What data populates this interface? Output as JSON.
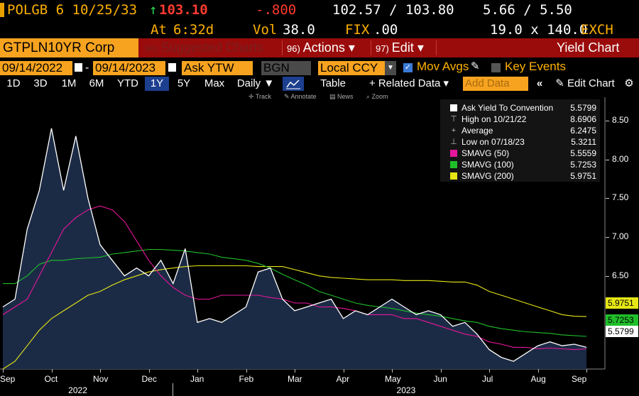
{
  "quote": {
    "security": "POLGB 6 10/25/33",
    "arrow": "↑",
    "price": "103.10",
    "change": "-.800",
    "bid_ask": "102.57 / 103.80",
    "yields": "5.66 / 5.50",
    "at_label": "At",
    "time": "6:32d",
    "vol_label": "Vol",
    "volume": "38.0",
    "fix_label": "FIX",
    "fix": ".00",
    "size": "19.0 x 140.0",
    "exchange": "EXCH"
  },
  "menubar": {
    "ticker": "GTPLN10YR Corp",
    "suggested_num": "96)",
    "suggested": "Suggested Charts",
    "actions_num": "96)",
    "actions": "Actions ▾",
    "edit_num": "97)",
    "edit": "Edit ▾",
    "title": "Yield Chart"
  },
  "controls": {
    "start_date": "09/14/2022",
    "dash": "-",
    "end_date": "09/14/2023",
    "field": "Ask YTW",
    "source": "BGN",
    "currency": "Local CCY",
    "mov_avgs": "Mov Avgs",
    "key_events": "Key Events"
  },
  "toolbar": {
    "ranges": [
      "1D",
      "3D",
      "1M",
      "6M",
      "YTD",
      "1Y",
      "5Y",
      "Max"
    ],
    "selected_range": "1Y",
    "frequency": "Daily ▼",
    "table": "Table",
    "related": "+ Related Data ▾",
    "add_data_placeholder": "Add Data",
    "edit_chart": "Edit Chart",
    "mini_track": "Track",
    "mini_annotate": "Annotate",
    "mini_news": "News",
    "mini_zoom": "Zoom"
  },
  "colors": {
    "price_line": "#ffffff",
    "area_fill": "#1c2b45",
    "smavg50": "#e6169b",
    "smavg100": "#1fbf2a",
    "smavg200": "#e6e616",
    "menubar": "#9a0b0b",
    "orange": "#f7a31f"
  },
  "legend": [
    {
      "label": "Ask Yield To Convention",
      "value": "5.5799",
      "kind": "swatch",
      "color": "#ffffff"
    },
    {
      "label": "High on 10/21/22",
      "value": "8.6906",
      "kind": "glyph",
      "glyph": "⊤"
    },
    {
      "label": "Average",
      "value": "6.2475",
      "kind": "glyph",
      "glyph": "+"
    },
    {
      "label": "Low on 07/18/23",
      "value": "5.3211",
      "kind": "glyph",
      "glyph": "⊥"
    },
    {
      "label": "SMAVG (50)",
      "value": "5.5559",
      "kind": "swatch",
      "color": "#e6169b"
    },
    {
      "label": "SMAVG (100)",
      "value": "5.7253",
      "kind": "swatch",
      "color": "#1fbf2a"
    },
    {
      "label": "SMAVG (200)",
      "value": "5.9751",
      "kind": "swatch",
      "color": "#e6e616"
    }
  ],
  "chart_data": {
    "type": "area",
    "ylim": [
      5.3,
      8.8
    ],
    "y_ticks": [
      "8.50",
      "8.00",
      "7.50",
      "7.00",
      "6.50"
    ],
    "x_tick_labels": [
      "Sep",
      "Oct",
      "Nov",
      "Dec",
      "Jan",
      "Feb",
      "Mar",
      "Apr",
      "May",
      "Jun",
      "Jul",
      "Aug",
      "Sep"
    ],
    "year_labels": [
      "2022",
      "2023"
    ],
    "x": [
      0,
      0.25,
      0.5,
      0.75,
      1,
      1.25,
      1.5,
      1.75,
      2,
      2.25,
      2.5,
      2.75,
      3,
      3.25,
      3.5,
      3.75,
      4,
      4.25,
      4.5,
      4.75,
      5,
      5.25,
      5.5,
      5.75,
      6,
      6.25,
      6.5,
      6.75,
      7,
      7.25,
      7.5,
      7.75,
      8,
      8.25,
      8.5,
      8.75,
      9,
      9.25,
      9.5,
      9.75,
      10,
      10.25,
      10.5,
      10.75,
      11,
      11.25,
      11.5,
      11.75,
      12
    ],
    "series": [
      {
        "name": "Ask Yield To Convention",
        "values": [
          6.1,
          6.2,
          7.1,
          7.6,
          8.4,
          7.6,
          8.3,
          7.5,
          6.9,
          6.7,
          6.5,
          6.6,
          6.5,
          6.7,
          6.4,
          6.85,
          5.9,
          5.95,
          5.9,
          6.0,
          6.1,
          6.55,
          6.6,
          6.2,
          6.05,
          6.1,
          6.15,
          6.2,
          5.95,
          6.05,
          6.0,
          6.1,
          6.2,
          6.1,
          6.0,
          6.05,
          6.0,
          5.85,
          5.9,
          5.75,
          5.55,
          5.45,
          5.4,
          5.5,
          5.6,
          5.65,
          5.6,
          5.62,
          5.58
        ]
      },
      {
        "name": "SMAVG (50)",
        "values": [
          6.0,
          6.1,
          6.2,
          6.5,
          6.8,
          7.1,
          7.25,
          7.35,
          7.4,
          7.35,
          7.2,
          6.95,
          6.7,
          6.5,
          6.35,
          6.25,
          6.2,
          6.2,
          6.25,
          6.25,
          6.25,
          6.25,
          6.22,
          6.2,
          6.15,
          6.15,
          6.1,
          6.1,
          6.08,
          6.05,
          6.0,
          6.0,
          6.0,
          5.95,
          5.95,
          5.9,
          5.85,
          5.8,
          5.75,
          5.72,
          5.65,
          5.62,
          5.58,
          5.58,
          5.56,
          5.57,
          5.56,
          5.55,
          5.56
        ]
      },
      {
        "name": "SMAVG (100)",
        "values": [
          6.4,
          6.4,
          6.5,
          6.65,
          6.7,
          6.7,
          6.72,
          6.73,
          6.74,
          6.78,
          6.8,
          6.82,
          6.84,
          6.84,
          6.83,
          6.82,
          6.8,
          6.78,
          6.74,
          6.72,
          6.7,
          6.66,
          6.6,
          6.52,
          6.45,
          6.38,
          6.3,
          6.25,
          6.2,
          6.15,
          6.12,
          6.1,
          6.08,
          6.05,
          6.02,
          6.0,
          5.98,
          5.95,
          5.92,
          5.9,
          5.85,
          5.82,
          5.8,
          5.78,
          5.77,
          5.76,
          5.74,
          5.73,
          5.72
        ]
      },
      {
        "name": "SMAVG (200)",
        "values": [
          5.3,
          5.4,
          5.6,
          5.8,
          5.95,
          6.05,
          6.15,
          6.25,
          6.3,
          6.38,
          6.45,
          6.5,
          6.55,
          6.58,
          6.6,
          6.62,
          6.63,
          6.63,
          6.63,
          6.63,
          6.63,
          6.62,
          6.62,
          6.62,
          6.58,
          6.54,
          6.5,
          6.48,
          6.47,
          6.46,
          6.45,
          6.45,
          6.45,
          6.44,
          6.44,
          6.44,
          6.43,
          6.42,
          6.42,
          6.38,
          6.3,
          6.25,
          6.2,
          6.15,
          6.1,
          6.05,
          6.0,
          5.98,
          5.975
        ]
      }
    ]
  }
}
